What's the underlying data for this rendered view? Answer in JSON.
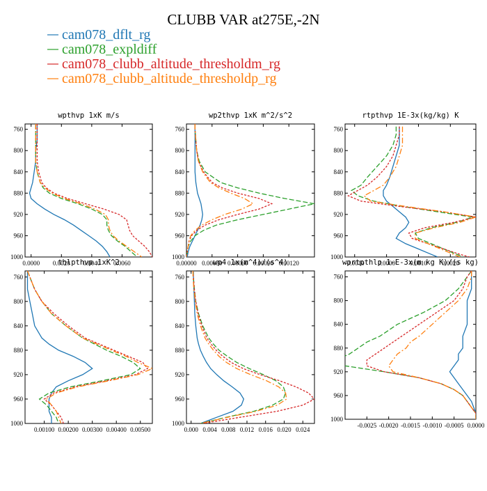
{
  "title": "CLUBB VAR at275E,-2N",
  "legend": [
    {
      "name": "cam078_dflt_rg",
      "color": "#1f77b4"
    },
    {
      "name": "cam078_expldiff",
      "color": "#2ca02c"
    },
    {
      "name": "cam078_clubb_altitude_thresholdm_rg",
      "color": "#d62728"
    },
    {
      "name": "cam078_clubb_altitude_thresholdp_rg",
      "color": "#ff7f0e"
    }
  ],
  "chart_data": [
    {
      "type": "line",
      "title": "wpthvp  1xK m/s",
      "xlim": [
        -0.0004,
        0.008
      ],
      "ylim": [
        1000,
        750
      ],
      "xticks": [
        "0.0000",
        "0.0020",
        "0.0040",
        "0.0060"
      ],
      "xtick_values": [
        0,
        0.002,
        0.004,
        0.006
      ],
      "yticks": [
        "760",
        "800",
        "840",
        "880",
        "920",
        "960",
        "1000"
      ],
      "ytick_values": [
        760,
        800,
        840,
        880,
        920,
        960,
        1000
      ],
      "y_levels": [
        750,
        760,
        780,
        800,
        820,
        840,
        860,
        870,
        880,
        890,
        900,
        910,
        920,
        930,
        940,
        950,
        960,
        970,
        980,
        990,
        1000
      ],
      "series": [
        {
          "name": "cam078_dflt_rg",
          "x": [
            0.0004,
            0.0004,
            0.0004,
            0.0003,
            0.0003,
            0.0002,
            0.0001,
            0.0,
            -0.0001,
            0.0,
            0.0004,
            0.0009,
            0.0015,
            0.0022,
            0.0028,
            0.0033,
            0.0038,
            0.0043,
            0.0047,
            0.005,
            0.0052
          ]
        },
        {
          "name": "cam078_expldiff",
          "x": [
            0.0003,
            0.0003,
            0.0003,
            0.0003,
            0.0003,
            0.0004,
            0.0006,
            0.0008,
            0.0012,
            0.002,
            0.0031,
            0.004,
            0.0047,
            0.005,
            0.005,
            0.0051,
            0.0053,
            0.0057,
            0.0062,
            0.0066,
            0.007
          ]
        },
        {
          "name": "cam078_clubb_altitude_thresholdm_rg",
          "x": [
            0.0004,
            0.0004,
            0.0004,
            0.0004,
            0.0004,
            0.0005,
            0.0007,
            0.001,
            0.0015,
            0.0024,
            0.0036,
            0.0048,
            0.0058,
            0.0063,
            0.0064,
            0.0065,
            0.0067,
            0.0071,
            0.0075,
            0.0078,
            0.008
          ]
        },
        {
          "name": "cam078_clubb_altitude_thresholdp_rg",
          "x": [
            0.0003,
            0.0003,
            0.0003,
            0.0003,
            0.0003,
            0.0004,
            0.0006,
            0.0009,
            0.0014,
            0.0022,
            0.0033,
            0.0042,
            0.0049,
            0.0051,
            0.0051,
            0.0052,
            0.0054,
            0.0058,
            0.0063,
            0.0068,
            0.0073
          ]
        }
      ]
    },
    {
      "type": "line",
      "title": "wp2thvp  1xK m^2/s^2",
      "xlim": [
        0,
        0.0015
      ],
      "ylim": [
        1000,
        750
      ],
      "xticks": [
        "0.00000",
        "0.00030",
        "0.00060",
        "0.00090",
        "0.00120"
      ],
      "xtick_values": [
        0,
        0.0003,
        0.0006,
        0.0009,
        0.0012
      ],
      "yticks": [
        "760",
        "800",
        "840",
        "880",
        "920",
        "960",
        "1000"
      ],
      "ytick_values": [
        760,
        800,
        840,
        880,
        920,
        960,
        1000
      ],
      "y_levels": [
        750,
        760,
        780,
        800,
        820,
        840,
        860,
        870,
        880,
        890,
        900,
        910,
        920,
        930,
        940,
        950,
        960,
        970,
        980,
        990,
        1000
      ],
      "series": [
        {
          "name": "cam078_dflt_rg",
          "x": [
            0.0001,
            0.0001,
            0.0001,
            0.0001,
            0.0001,
            0.0001,
            0.00011,
            0.00012,
            0.00013,
            0.00015,
            0.00017,
            0.00018,
            0.00019,
            0.00018,
            0.00016,
            0.00013,
            0.0001,
            7e-05,
            4e-05,
            2e-05,
            1e-05
          ]
        },
        {
          "name": "cam078_expldiff",
          "x": [
            0.0001,
            0.0001,
            0.00011,
            0.00012,
            0.00015,
            0.00022,
            0.0004,
            0.0006,
            0.00085,
            0.00115,
            0.0015,
            0.0012,
            0.0009,
            0.0006,
            0.00035,
            0.0002,
            0.0001,
            5e-05,
            2e-05,
            1e-05,
            0.0
          ]
        },
        {
          "name": "cam078_clubb_altitude_thresholdm_rg",
          "x": [
            0.0001,
            0.0001,
            0.00011,
            0.00012,
            0.00014,
            0.0002,
            0.0003,
            0.00042,
            0.0006,
            0.00085,
            0.001,
            0.00085,
            0.0006,
            0.00038,
            0.00022,
            0.00012,
            6e-05,
            3e-05,
            2e-05,
            1e-05,
            0.0
          ]
        },
        {
          "name": "cam078_clubb_altitude_thresholdp_rg",
          "x": [
            0.0001,
            0.0001,
            0.00011,
            0.00012,
            0.00014,
            0.00019,
            0.00028,
            0.00038,
            0.00052,
            0.00068,
            0.00078,
            0.00065,
            0.00045,
            0.0003,
            0.00018,
            0.0001,
            5e-05,
            3e-05,
            2e-05,
            1e-05,
            0.0
          ]
        }
      ]
    },
    {
      "type": "line",
      "title": "rtpthvp  1E-3x(kg/kg) K",
      "xlim": [
        -0.0013,
        0.0028
      ],
      "ylim": [
        1000,
        750
      ],
      "xticks": [
        "-0.0010",
        "0.0000",
        "0.0010",
        "0.0020"
      ],
      "xtick_values": [
        -0.001,
        0,
        0.001,
        0.002
      ],
      "yticks": [
        "760",
        "800",
        "840",
        "880",
        "920",
        "960",
        "1000"
      ],
      "ytick_values": [
        760,
        800,
        840,
        880,
        920,
        960,
        1000
      ],
      "y_levels": [
        755,
        770,
        790,
        810,
        830,
        850,
        865,
        875,
        885,
        895,
        905,
        915,
        925,
        935,
        945,
        955,
        965,
        975,
        985,
        995,
        1000
      ],
      "series": [
        {
          "name": "cam078_dflt_rg",
          "x": [
            0.0004,
            0.0004,
            0.0004,
            0.0003,
            0.0002,
            0.0001,
            0.0,
            -0.0001,
            -0.0001,
            0.0,
            0.0002,
            0.0004,
            0.0006,
            0.0007,
            0.0006,
            0.0004,
            0.0003,
            0.0006,
            0.001,
            0.0014,
            0.0016
          ]
        },
        {
          "name": "cam078_expldiff",
          "x": [
            0.0003,
            0.0003,
            0.0002,
            0.0,
            -0.0003,
            -0.0006,
            -0.0008,
            -0.0011,
            -0.0009,
            -0.0004,
            0.0005,
            0.0016,
            0.0027,
            0.0022,
            0.0014,
            0.0009,
            0.001,
            0.0014,
            0.0018,
            0.0022,
            0.0024
          ]
        },
        {
          "name": "cam078_clubb_altitude_thresholdm_rg",
          "x": [
            0.0004,
            0.0004,
            0.0003,
            0.0002,
            0.0,
            -0.0003,
            -0.0006,
            -0.0009,
            -0.0012,
            -0.0008,
            0.0004,
            0.0018,
            0.0028,
            0.0021,
            0.0012,
            0.0007,
            0.0008,
            0.0013,
            0.0018,
            0.0023,
            0.0026
          ]
        },
        {
          "name": "cam078_clubb_altitude_thresholdp_rg",
          "x": [
            0.0005,
            0.0005,
            0.0005,
            0.0004,
            0.0003,
            0.0001,
            -0.0001,
            -0.0004,
            -0.0007,
            -0.0005,
            0.0006,
            0.0018,
            0.0028,
            0.0023,
            0.0015,
            0.0009,
            0.0009,
            0.0013,
            0.0017,
            0.0021,
            0.0023
          ]
        }
      ]
    },
    {
      "type": "line",
      "title": "thlpthvp  1xK^2",
      "xlim": [
        0.0002,
        0.0055
      ],
      "ylim": [
        1000,
        750
      ],
      "xticks": [
        "0.00100",
        "0.00200",
        "0.00300",
        "0.00400",
        "0.00500"
      ],
      "xtick_values": [
        0.001,
        0.002,
        0.003,
        0.004,
        0.005
      ],
      "yticks": [
        "760",
        "800",
        "840",
        "880",
        "920",
        "960",
        "1000"
      ],
      "ytick_values": [
        760,
        800,
        840,
        880,
        920,
        960,
        1000
      ],
      "y_levels": [
        750,
        760,
        780,
        800,
        820,
        840,
        860,
        870,
        880,
        890,
        900,
        910,
        920,
        930,
        940,
        950,
        960,
        970,
        980,
        990,
        1000
      ],
      "series": [
        {
          "name": "cam078_dflt_rg",
          "x": [
            0.0003,
            0.0003,
            0.0003,
            0.0004,
            0.0005,
            0.0006,
            0.0009,
            0.0012,
            0.0016,
            0.0022,
            0.0027,
            0.003,
            0.0026,
            0.002,
            0.0015,
            0.0013,
            0.0012,
            0.0012,
            0.0012,
            0.0013,
            0.0013
          ]
        },
        {
          "name": "cam078_expldiff",
          "x": [
            0.0003,
            0.0004,
            0.0006,
            0.0009,
            0.0013,
            0.0019,
            0.0026,
            0.0031,
            0.0036,
            0.0042,
            0.0047,
            0.005,
            0.0046,
            0.0034,
            0.0021,
            0.0012,
            0.0008,
            0.0011,
            0.0013,
            0.0015,
            0.0016
          ]
        },
        {
          "name": "cam078_clubb_altitude_thresholdm_rg",
          "x": [
            0.0003,
            0.0004,
            0.0006,
            0.0009,
            0.0014,
            0.002,
            0.0027,
            0.0033,
            0.0039,
            0.0045,
            0.0051,
            0.0053,
            0.0048,
            0.0036,
            0.0023,
            0.0014,
            0.001,
            0.0013,
            0.0015,
            0.0017,
            0.0018
          ]
        },
        {
          "name": "cam078_clubb_altitude_thresholdp_rg",
          "x": [
            0.0003,
            0.0004,
            0.0006,
            0.0009,
            0.0013,
            0.0019,
            0.0026,
            0.0032,
            0.0038,
            0.0044,
            0.0049,
            0.0055,
            0.0049,
            0.0037,
            0.0024,
            0.0015,
            0.0011,
            0.0013,
            0.0015,
            0.0016,
            0.0017
          ]
        }
      ]
    },
    {
      "type": "line",
      "title": "wp4  1x(m^4)/(s^4)",
      "xlim": [
        -0.001,
        0.0265
      ],
      "ylim": [
        1000,
        750
      ],
      "xticks": [
        "0.000",
        "0.004",
        "0.008",
        "0.012",
        "0.016",
        "0.020",
        "0.024"
      ],
      "xtick_values": [
        0,
        0.004,
        0.008,
        0.012,
        0.016,
        0.02,
        0.024
      ],
      "yticks": [
        "760",
        "800",
        "840",
        "880",
        "920",
        "960",
        "1000"
      ],
      "ytick_values": [
        760,
        800,
        840,
        880,
        920,
        960,
        1000
      ],
      "y_levels": [
        750,
        760,
        780,
        800,
        820,
        840,
        860,
        870,
        880,
        890,
        900,
        910,
        920,
        930,
        940,
        950,
        960,
        970,
        980,
        990,
        1000
      ],
      "series": [
        {
          "name": "cam078_dflt_rg",
          "x": [
            0.0005,
            0.0005,
            0.0006,
            0.0007,
            0.0008,
            0.001,
            0.0013,
            0.0016,
            0.002,
            0.0026,
            0.0033,
            0.0042,
            0.0055,
            0.007,
            0.0088,
            0.0105,
            0.0113,
            0.0108,
            0.009,
            0.0055,
            0.002
          ]
        },
        {
          "name": "cam078_expldiff",
          "x": [
            0.0004,
            0.0005,
            0.0007,
            0.001,
            0.0016,
            0.0025,
            0.0038,
            0.0048,
            0.006,
            0.0078,
            0.0098,
            0.0125,
            0.0155,
            0.0182,
            0.0198,
            0.0203,
            0.0198,
            0.0175,
            0.0135,
            0.0075,
            0.002
          ]
        },
        {
          "name": "cam078_clubb_altitude_thresholdm_rg",
          "x": [
            0.0004,
            0.0005,
            0.0007,
            0.001,
            0.0015,
            0.0023,
            0.0034,
            0.0043,
            0.0054,
            0.0068,
            0.0086,
            0.0112,
            0.0148,
            0.019,
            0.0225,
            0.0252,
            0.0265,
            0.024,
            0.0185,
            0.0105,
            0.0025
          ]
        },
        {
          "name": "cam078_clubb_altitude_thresholdp_rg",
          "x": [
            0.0004,
            0.0004,
            0.0006,
            0.0009,
            0.0013,
            0.002,
            0.003,
            0.0038,
            0.0048,
            0.006,
            0.0076,
            0.0098,
            0.0128,
            0.0162,
            0.0188,
            0.0203,
            0.0205,
            0.0185,
            0.014,
            0.0078,
            0.002
          ]
        }
      ]
    },
    {
      "type": "line",
      "title": "wprtpthlp  1-E-3x(m kg K)/(s kg)",
      "xlim": [
        -0.003,
        0.0
      ],
      "ylim": [
        1000,
        750
      ],
      "xticks": [
        "-0.0025",
        "-0.0020",
        "-0.0015",
        "-0.0010",
        "-0.0005",
        "0.0000"
      ],
      "xtick_values": [
        -0.0025,
        -0.002,
        -0.0015,
        -0.001,
        -0.0005,
        0
      ],
      "yticks": [
        "760",
        "800",
        "840",
        "880",
        "920",
        "960",
        "1000"
      ],
      "ytick_values": [
        760,
        800,
        840,
        880,
        920,
        960,
        1000
      ],
      "y_levels": [
        750,
        760,
        780,
        800,
        820,
        840,
        860,
        870,
        880,
        890,
        900,
        910,
        920,
        930,
        940,
        950,
        960,
        970,
        980,
        990,
        1000
      ],
      "series": [
        {
          "name": "cam078_dflt_rg",
          "x": [
            -0.0001,
            -0.0001,
            -0.0001,
            -0.0002,
            -0.0002,
            -0.0002,
            -0.0003,
            -0.0003,
            -0.0003,
            -0.0004,
            -0.0004,
            -0.0005,
            -0.0006,
            -0.0005,
            -0.0004,
            -0.0003,
            -0.0002,
            -0.0001,
            -5e-05,
            0.0,
            0.0
          ]
        },
        {
          "name": "cam078_expldiff",
          "x": [
            -0.0001,
            -0.0002,
            -0.0004,
            -0.0007,
            -0.0012,
            -0.0018,
            -0.0022,
            -0.0025,
            -0.0027,
            -0.0029,
            -0.0032,
            -0.003,
            -0.0021,
            -0.0013,
            -0.0008,
            -0.0005,
            -0.0003,
            -0.0002,
            -0.0001,
            0.0,
            0.0
          ]
        },
        {
          "name": "cam078_clubb_altitude_thresholdm_rg",
          "x": [
            -0.0001,
            -0.0002,
            -0.0003,
            -0.0005,
            -0.0009,
            -0.0013,
            -0.0017,
            -0.0019,
            -0.0021,
            -0.0023,
            -0.0025,
            -0.0025,
            -0.0021,
            -0.0013,
            -0.0008,
            -0.0005,
            -0.0003,
            -0.0002,
            -0.0001,
            0.0,
            0.0
          ]
        },
        {
          "name": "cam078_clubb_altitude_thresholdp_rg",
          "x": [
            -0.0001,
            -0.0001,
            -0.0002,
            -0.0004,
            -0.0007,
            -0.001,
            -0.0013,
            -0.0015,
            -0.0016,
            -0.0018,
            -0.0019,
            -0.002,
            -0.0019,
            -0.0013,
            -0.0008,
            -0.0005,
            -0.0003,
            -0.0002,
            -0.0001,
            0.0,
            0.0
          ]
        }
      ]
    }
  ]
}
